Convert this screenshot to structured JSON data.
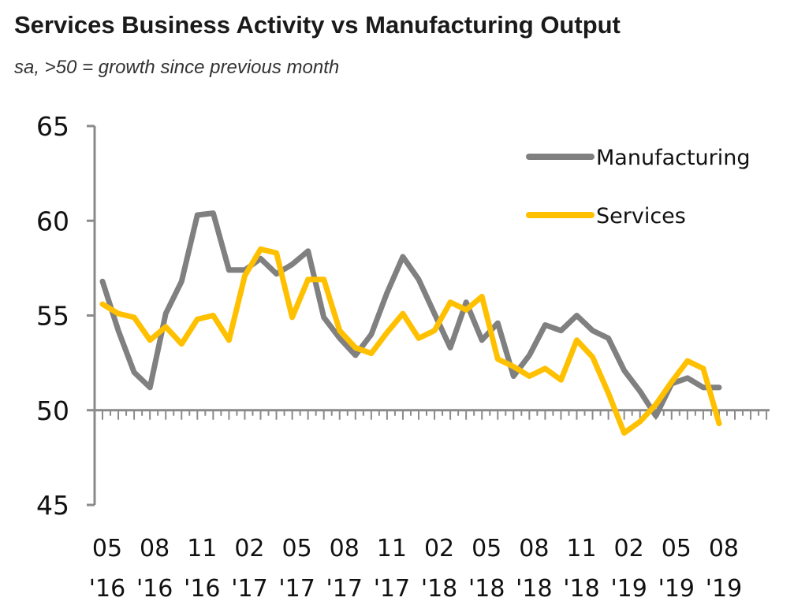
{
  "chart_data": {
    "type": "line",
    "title": "Services Business Activity vs Manufacturing Output",
    "subtitle": "sa, >50 = growth since previous month",
    "xlabel": "",
    "ylabel": "",
    "ylim": [
      45,
      65
    ],
    "yticks": [
      "65",
      "60",
      "55",
      "50",
      "45"
    ],
    "ytick_values": [
      65,
      60,
      55,
      50,
      45
    ],
    "baseline": 50,
    "grid": false,
    "legend_position": "top-right",
    "x": [
      "05'16",
      "06'16",
      "07'16",
      "08'16",
      "09'16",
      "10'16",
      "11'16",
      "12'16",
      "01'17",
      "02'17",
      "03'17",
      "04'17",
      "05'17",
      "06'17",
      "07'17",
      "08'17",
      "09'17",
      "10'17",
      "11'17",
      "12'17",
      "01'18",
      "02'18",
      "03'18",
      "04'18",
      "05'18",
      "06'18",
      "07'18",
      "08'18",
      "09'18",
      "10'18",
      "11'18",
      "12'18",
      "01'19",
      "02'19",
      "03'19",
      "04'19",
      "05'19",
      "06'19",
      "07'19",
      "08'19"
    ],
    "xtick_labels": [
      {
        "month": "05",
        "year": "'16",
        "index": 0
      },
      {
        "month": "08",
        "year": "'16",
        "index": 3
      },
      {
        "month": "11",
        "year": "'16",
        "index": 6
      },
      {
        "month": "02",
        "year": "'17",
        "index": 9
      },
      {
        "month": "05",
        "year": "'17",
        "index": 12
      },
      {
        "month": "08",
        "year": "'17",
        "index": 15
      },
      {
        "month": "11",
        "year": "'17",
        "index": 18
      },
      {
        "month": "02",
        "year": "'18",
        "index": 21
      },
      {
        "month": "05",
        "year": "'18",
        "index": 24
      },
      {
        "month": "08",
        "year": "'18",
        "index": 27
      },
      {
        "month": "11",
        "year": "'18",
        "index": 30
      },
      {
        "month": "02",
        "year": "'19",
        "index": 33
      },
      {
        "month": "05",
        "year": "'19",
        "index": 36
      },
      {
        "month": "08",
        "year": "'19",
        "index": 39
      }
    ],
    "minor_tick_count": 43,
    "series": [
      {
        "name": "Manufacturing",
        "color": "#808080",
        "values": [
          56.8,
          54.2,
          52.0,
          51.2,
          55.1,
          56.8,
          60.3,
          60.4,
          57.4,
          57.4,
          58.0,
          57.2,
          57.7,
          58.4,
          54.9,
          53.8,
          52.9,
          54.0,
          56.2,
          58.1,
          56.9,
          55.1,
          53.3,
          55.7,
          53.7,
          54.6,
          51.8,
          52.9,
          54.5,
          54.2,
          55.0,
          54.2,
          53.8,
          52.1,
          51.0,
          49.7,
          51.4,
          51.7,
          51.2,
          51.2
        ]
      },
      {
        "name": "Services",
        "color": "#FFC000",
        "values": [
          55.6,
          55.1,
          54.9,
          53.7,
          54.4,
          53.5,
          54.8,
          55.0,
          53.7,
          57.1,
          58.5,
          58.3,
          54.9,
          56.9,
          56.9,
          54.2,
          53.3,
          53.0,
          54.1,
          55.1,
          53.8,
          54.2,
          55.7,
          55.3,
          56.0,
          52.7,
          52.3,
          51.8,
          52.2,
          51.6,
          53.7,
          52.8,
          50.9,
          48.8,
          49.4,
          50.3,
          51.5,
          52.6,
          52.2,
          49.3
        ]
      }
    ]
  },
  "colors": {
    "axis": "#8a8a8a",
    "manufacturing": "#808080",
    "services": "#FFC000",
    "text": "#111111"
  }
}
